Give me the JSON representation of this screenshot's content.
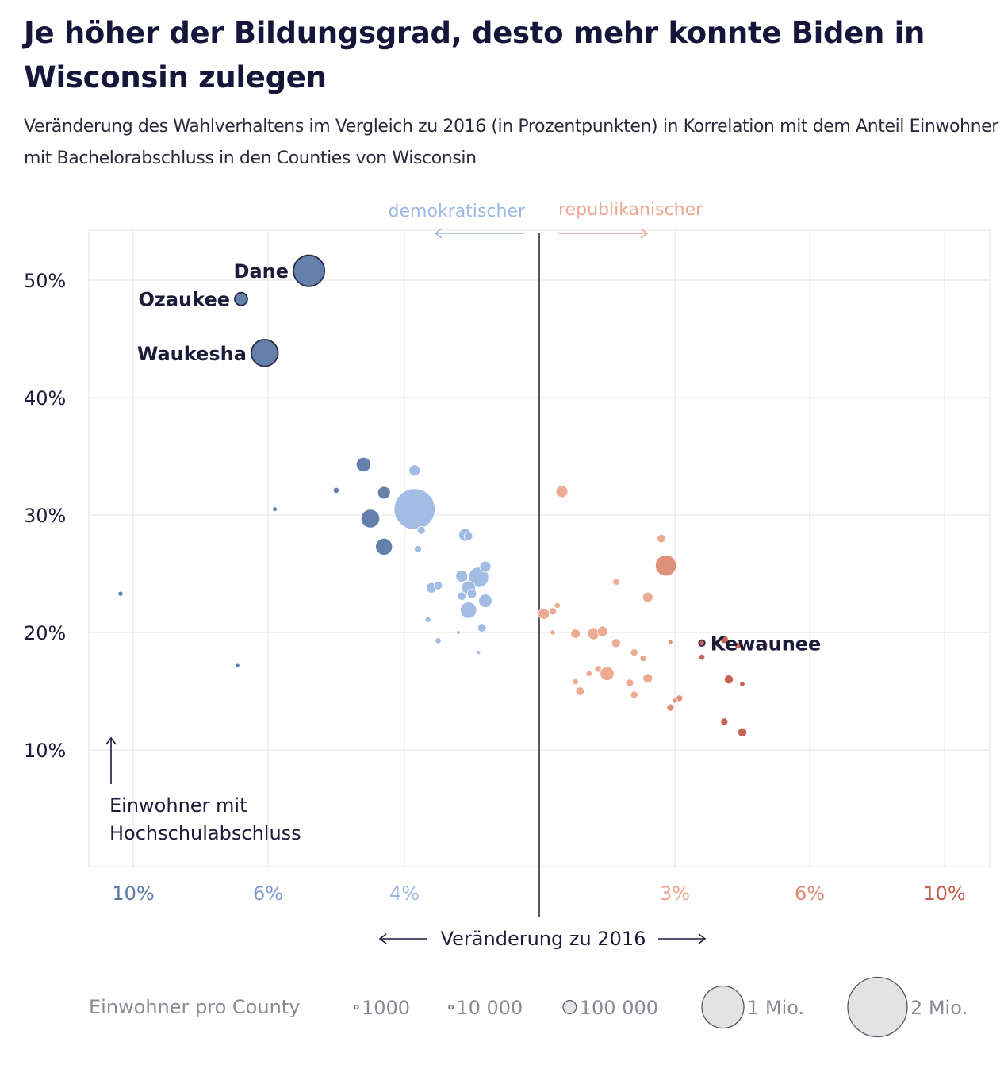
{
  "title": "Je höher der Bildungsgrad, desto mehr konnte Biden in Wisconsin zulegen",
  "subtitle": "Veränderung des Wahlverhaltens im Vergleich zu 2016 (in Prozentpunkten) in Korrelation mit dem Anteil Einwohner mit Bachelorabschluss in den Counties von Wisconsin",
  "direction_labels": {
    "dem": "demokratischer",
    "rep": "republikanischer"
  },
  "y_axis_note": [
    "Einwohner mit",
    "Hochschulabschluss"
  ],
  "x_axis_title": "Veränderung zu 2016",
  "colors": {
    "dem_light": "#9db8e2",
    "dem_mid": "#7e9dcc",
    "dem_dark": "#5c7aa6",
    "rep_light": "#eca68e",
    "rep_mid": "#dd8a72",
    "rep_dark": "#c45a4c",
    "divider": "#2c2c4a",
    "grid": "#e3e3e6",
    "label": "#1c1b3a"
  },
  "legend": {
    "title": "Einwohner pro County",
    "items": [
      {
        "label": "1000",
        "population": 1000
      },
      {
        "label": "10 000",
        "population": 10000
      },
      {
        "label": "100 000",
        "population": 100000
      },
      {
        "label": "1 Mio.",
        "population": 1000000
      },
      {
        "label": "2 Mio.",
        "population": 2000000
      }
    ]
  },
  "chart_data": {
    "type": "scatter",
    "title": "Je höher der Bildungsgrad, desto mehr konnte Biden in Wisconsin zulegen",
    "subtitle": "Veränderung des Wahlverhaltens im Vergleich zu 2016 (in Prozentpunkten) in Korrelation mit dem Anteil Einwohner mit Bachelorabschluss in den Counties von Wisconsin",
    "xlabel": "Veränderung zu 2016",
    "ylabel": "Einwohner mit Hochschulabschluss",
    "x_note": "Negative x = Verschiebung demokratisch, positive x = republikanisch",
    "xlim": [
      -11,
      11
    ],
    "ylim": [
      0,
      55
    ],
    "x_scale": "symmetric, compressed at extremes",
    "x_ticks": [
      {
        "value": -10,
        "label": "10%"
      },
      {
        "value": -6,
        "label": "6%"
      },
      {
        "value": -4,
        "label": "4%"
      },
      {
        "value": 3,
        "label": "3%"
      },
      {
        "value": 6,
        "label": "6%"
      },
      {
        "value": 10,
        "label": "10%"
      }
    ],
    "y_ticks": [
      {
        "value": 10,
        "label": "10%"
      },
      {
        "value": 20,
        "label": "20%"
      },
      {
        "value": 30,
        "label": "30%"
      },
      {
        "value": 40,
        "label": "40%"
      },
      {
        "value": 50,
        "label": "50%"
      }
    ],
    "grid": true,
    "points": [
      {
        "name": "Dane",
        "x": -5.4,
        "y": 50.8,
        "pop": 546000
      },
      {
        "name": "Ozaukee",
        "x": -6.8,
        "y": 48.4,
        "pop": 91000
      },
      {
        "name": "Waukesha",
        "x": -6.1,
        "y": 43.8,
        "pop": 404000
      },
      {
        "name": "Kewaunee",
        "x": 3.6,
        "y": 19.1,
        "pop": 20500
      },
      {
        "x": -10.4,
        "y": 23.3,
        "pop": 14000
      },
      {
        "x": -6.9,
        "y": 17.2,
        "pop": 9000
      },
      {
        "x": -5.9,
        "y": 30.5,
        "pop": 12000
      },
      {
        "x": -5.0,
        "y": 32.1,
        "pop": 20000
      },
      {
        "x": -4.6,
        "y": 34.3,
        "pop": 120000
      },
      {
        "x": -4.3,
        "y": 31.9,
        "pop": 90000
      },
      {
        "x": -4.5,
        "y": 29.7,
        "pop": 196000
      },
      {
        "x": -4.3,
        "y": 27.3,
        "pop": 160000
      },
      {
        "x": -3.7,
        "y": 30.5,
        "pop": 946000
      },
      {
        "x": -3.7,
        "y": 33.8,
        "pop": 70000
      },
      {
        "x": -3.5,
        "y": 28.7,
        "pop": 35000
      },
      {
        "x": -3.6,
        "y": 27.1,
        "pop": 30000
      },
      {
        "x": -3.2,
        "y": 23.8,
        "pop": 60000
      },
      {
        "x": -3.0,
        "y": 24.0,
        "pop": 40000
      },
      {
        "x": -3.3,
        "y": 21.1,
        "pop": 18000
      },
      {
        "x": -3.0,
        "y": 19.3,
        "pop": 20000
      },
      {
        "x": -2.2,
        "y": 28.3,
        "pop": 90000
      },
      {
        "x": -2.1,
        "y": 28.2,
        "pop": 40000
      },
      {
        "x": -2.3,
        "y": 24.8,
        "pop": 80000
      },
      {
        "x": -2.1,
        "y": 23.8,
        "pop": 110000
      },
      {
        "x": -2.0,
        "y": 23.3,
        "pop": 50000
      },
      {
        "x": -2.3,
        "y": 23.1,
        "pop": 40000
      },
      {
        "x": -2.1,
        "y": 21.9,
        "pop": 150000
      },
      {
        "x": -1.8,
        "y": 24.7,
        "pop": 230000
      },
      {
        "x": -1.6,
        "y": 25.6,
        "pop": 70000
      },
      {
        "x": -1.6,
        "y": 22.7,
        "pop": 100000
      },
      {
        "x": -1.7,
        "y": 20.4,
        "pop": 40000
      },
      {
        "x": -2.4,
        "y": 20.0,
        "pop": 9000
      },
      {
        "x": -1.8,
        "y": 18.3,
        "pop": 8000
      },
      {
        "x": 0.1,
        "y": 21.6,
        "pop": 70000
      },
      {
        "x": 0.3,
        "y": 21.8,
        "pop": 30000
      },
      {
        "x": 0.4,
        "y": 22.3,
        "pop": 20000
      },
      {
        "x": 0.3,
        "y": 20.0,
        "pop": 15000
      },
      {
        "x": 0.5,
        "y": 32.0,
        "pop": 80000
      },
      {
        "x": 0.8,
        "y": 19.9,
        "pop": 50000
      },
      {
        "x": 1.2,
        "y": 19.9,
        "pop": 80000
      },
      {
        "x": 1.4,
        "y": 20.1,
        "pop": 60000
      },
      {
        "x": 0.8,
        "y": 15.8,
        "pop": 20000
      },
      {
        "x": 0.9,
        "y": 15.0,
        "pop": 40000
      },
      {
        "x": 1.1,
        "y": 16.5,
        "pop": 20000
      },
      {
        "x": 1.3,
        "y": 16.9,
        "pop": 25000
      },
      {
        "x": 1.5,
        "y": 16.5,
        "pop": 110000
      },
      {
        "x": 1.7,
        "y": 24.3,
        "pop": 25000
      },
      {
        "x": 1.7,
        "y": 19.1,
        "pop": 45000
      },
      {
        "x": 2.0,
        "y": 15.7,
        "pop": 35000
      },
      {
        "x": 2.1,
        "y": 14.7,
        "pop": 30000
      },
      {
        "x": 2.1,
        "y": 18.3,
        "pop": 30000
      },
      {
        "x": 2.3,
        "y": 17.8,
        "pop": 25000
      },
      {
        "x": 2.4,
        "y": 16.1,
        "pop": 50000
      },
      {
        "x": 2.4,
        "y": 23.0,
        "pop": 60000
      },
      {
        "x": 2.7,
        "y": 28.0,
        "pop": 40000
      },
      {
        "x": 2.8,
        "y": 25.7,
        "pop": 250000
      },
      {
        "x": 2.9,
        "y": 19.2,
        "pop": 12000
      },
      {
        "x": 2.9,
        "y": 13.6,
        "pop": 30000
      },
      {
        "x": 3.0,
        "y": 14.2,
        "pop": 15000
      },
      {
        "x": 3.1,
        "y": 14.4,
        "pop": 25000
      },
      {
        "x": 3.6,
        "y": 17.9,
        "pop": 20000
      },
      {
        "x": 4.1,
        "y": 19.4,
        "pop": 35000
      },
      {
        "x": 4.4,
        "y": 18.9,
        "pop": 22000
      },
      {
        "x": 5.0,
        "y": 18.9,
        "pop": 18000
      },
      {
        "x": 4.2,
        "y": 16.0,
        "pop": 45000
      },
      {
        "x": 4.5,
        "y": 15.6,
        "pop": 15000
      },
      {
        "x": 4.1,
        "y": 12.4,
        "pop": 30000
      },
      {
        "x": 4.5,
        "y": 11.5,
        "pop": 45000
      }
    ]
  }
}
